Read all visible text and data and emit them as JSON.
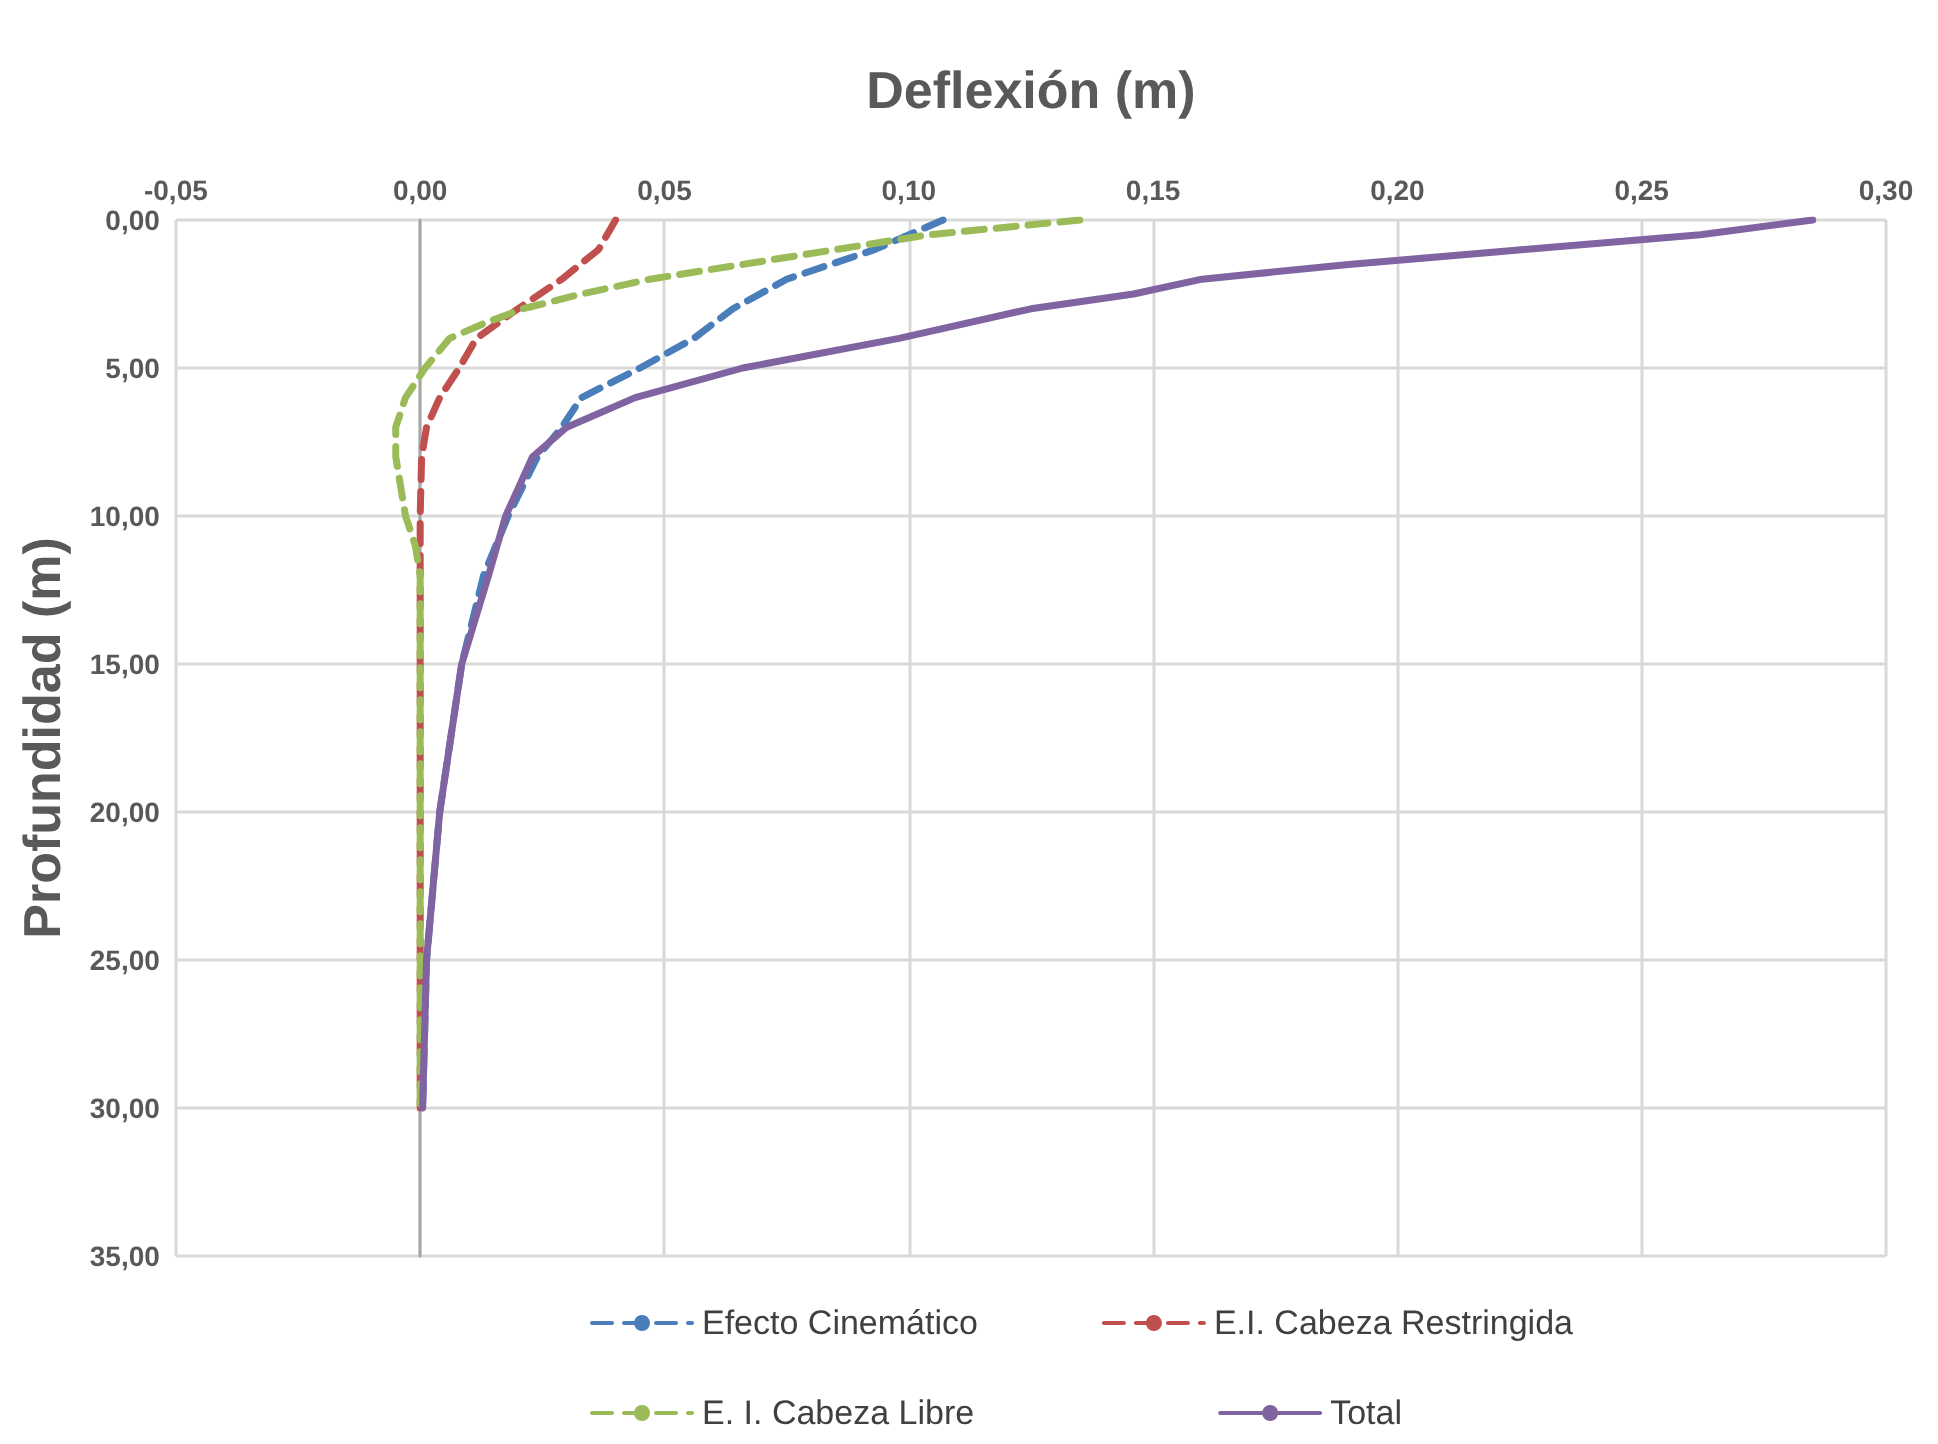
{
  "chart_data": {
    "type": "line",
    "xlabel": "Deflexión (m)",
    "ylabel": "Profundidad (m)",
    "xlim": [
      -0.05,
      0.3
    ],
    "xticks": [
      {
        "value": -0.05,
        "label": "-0,05"
      },
      {
        "value": 0,
        "label": "0,00"
      },
      {
        "value": 0.05,
        "label": "0,05"
      },
      {
        "value": 0.1,
        "label": "0,10"
      },
      {
        "value": 0.15,
        "label": "0,15"
      },
      {
        "value": 0.2,
        "label": "0,20"
      },
      {
        "value": 0.25,
        "label": "0,25"
      },
      {
        "value": 0.3,
        "label": "0,30"
      }
    ],
    "ylim": [
      35,
      0
    ],
    "yticks": [
      {
        "value": 0,
        "label": "0,00"
      },
      {
        "value": 5,
        "label": "5,00"
      },
      {
        "value": 10,
        "label": "10,00"
      },
      {
        "value": 15,
        "label": "15,00"
      },
      {
        "value": 20,
        "label": "20,00"
      },
      {
        "value": 25,
        "label": "25,00"
      },
      {
        "value": 30,
        "label": "30,00"
      },
      {
        "value": 35,
        "label": "35,00"
      }
    ],
    "grid": true,
    "legend": "bottom",
    "marker": "none",
    "series": [
      {
        "name": "Efecto Cinemático",
        "color": "#4a7ebb",
        "line_style": "dashed",
        "x": [
          0.107,
          0.093,
          0.075,
          0.064,
          0.056,
          0.045,
          0.033,
          0.029,
          0.024,
          0.018,
          0.013,
          0.0085,
          0.004,
          0.0013,
          0.0005
        ],
        "values": [
          0,
          1,
          2,
          3,
          4,
          5,
          6,
          7,
          8,
          10,
          12,
          15,
          20,
          25,
          30
        ]
      },
      {
        "name": "E.I. Cabeza Restringida",
        "color": "#c0504d",
        "line_style": "dashed",
        "x": [
          0.04,
          0.0365,
          0.029,
          0.02,
          0.0115,
          0.008,
          0.004,
          0.0013,
          0.0003,
          0,
          0,
          0,
          0,
          0
        ],
        "values": [
          0,
          1,
          2,
          3,
          4,
          5,
          6,
          7,
          8,
          10,
          15,
          20,
          25,
          30
        ]
      },
      {
        "name": "E. I. Cabeza Libre",
        "color": "#9bbb59",
        "line_style": "dashed",
        "x": [
          0.135,
          0.104,
          0.085,
          0.066,
          0.047,
          0.033,
          0.021,
          0.013,
          0.006,
          0.001,
          -0.003,
          -0.005,
          -0.005,
          -0.004,
          -0.003,
          -0.001,
          0,
          0,
          0,
          0,
          0
        ],
        "values": [
          0,
          0.5,
          1,
          1.5,
          2,
          2.5,
          3,
          3.5,
          4,
          5,
          6,
          7,
          8,
          9,
          10,
          11,
          12,
          15,
          20,
          25,
          30
        ]
      },
      {
        "name": "Total",
        "color": "#8064a2",
        "line_style": "solid",
        "x": [
          0.285,
          0.262,
          0.226,
          0.19,
          0.16,
          0.146,
          0.125,
          0.098,
          0.066,
          0.044,
          0.03,
          0.023,
          0.0175,
          0.014,
          0.0085,
          0.004,
          0.0013,
          0.0005
        ],
        "values": [
          0,
          0.5,
          1,
          1.5,
          2,
          2.5,
          3,
          4,
          5,
          6,
          7,
          8,
          10,
          12,
          15,
          20,
          25,
          30
        ]
      }
    ]
  }
}
